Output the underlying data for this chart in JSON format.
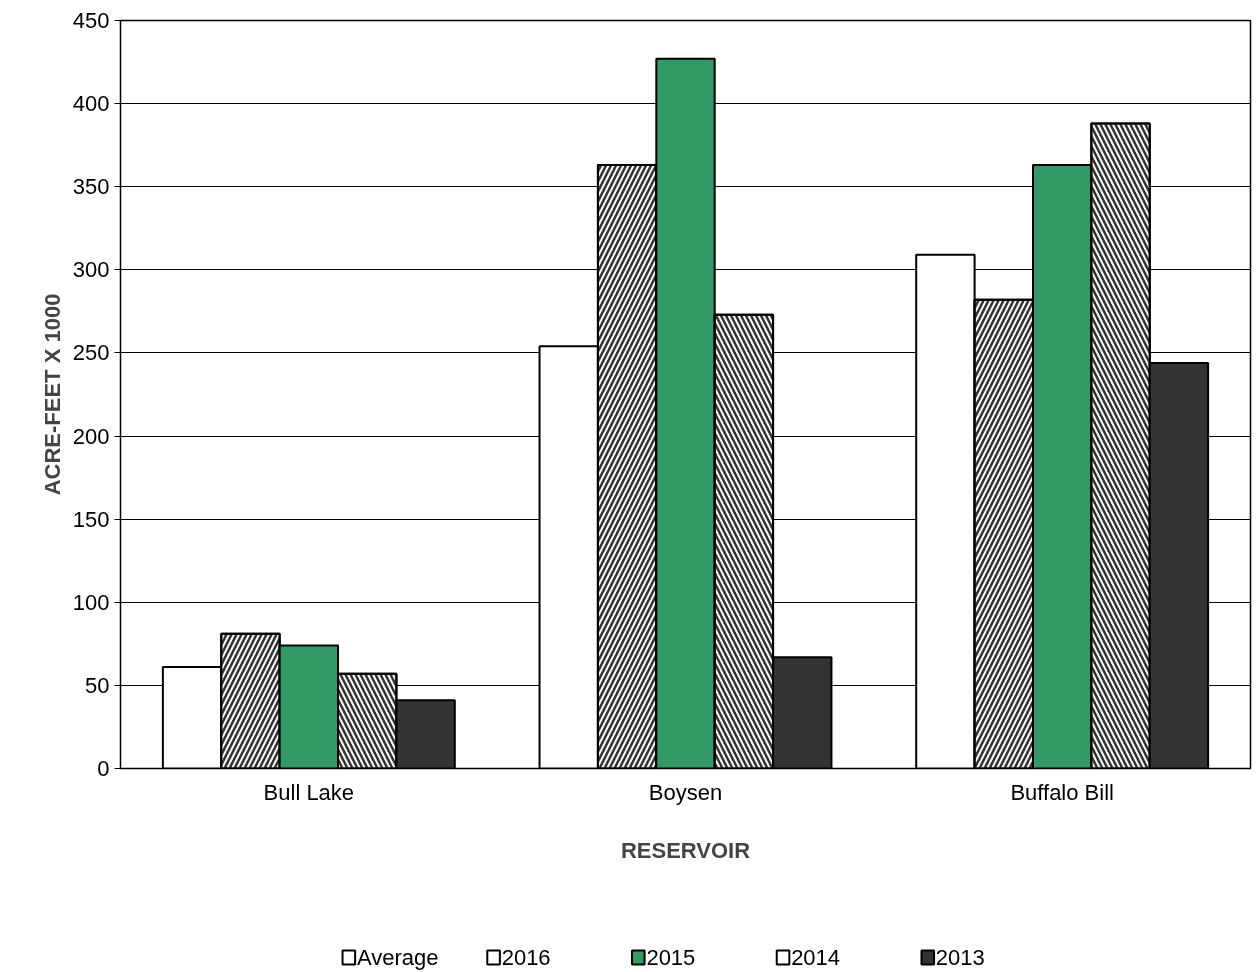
{
  "chart_data": {
    "type": "bar",
    "xlabel": "RESERVOIR",
    "ylabel": "ACRE-FEET X 1000",
    "categories": [
      "Bull Lake",
      "Boysen",
      "Buffalo Bill"
    ],
    "series": [
      {
        "name": "Average",
        "color": "#ffffff",
        "values": [
          61,
          254,
          309
        ]
      },
      {
        "name": "2016",
        "color": "#ffffff",
        "values": [
          81,
          363,
          282
        ]
      },
      {
        "name": "2015",
        "color": "#339966",
        "values": [
          74,
          427,
          363
        ]
      },
      {
        "name": "2014",
        "color": "#ffffff",
        "values": [
          57,
          273,
          388
        ]
      },
      {
        "name": "2013",
        "color": "#333333",
        "values": [
          41,
          67,
          244
        ]
      }
    ],
    "ylim": [
      0,
      450
    ],
    "yticks": [
      0,
      50,
      100,
      150,
      200,
      250,
      300,
      350,
      400,
      450
    ],
    "grid": "y",
    "legend": "bottom"
  }
}
